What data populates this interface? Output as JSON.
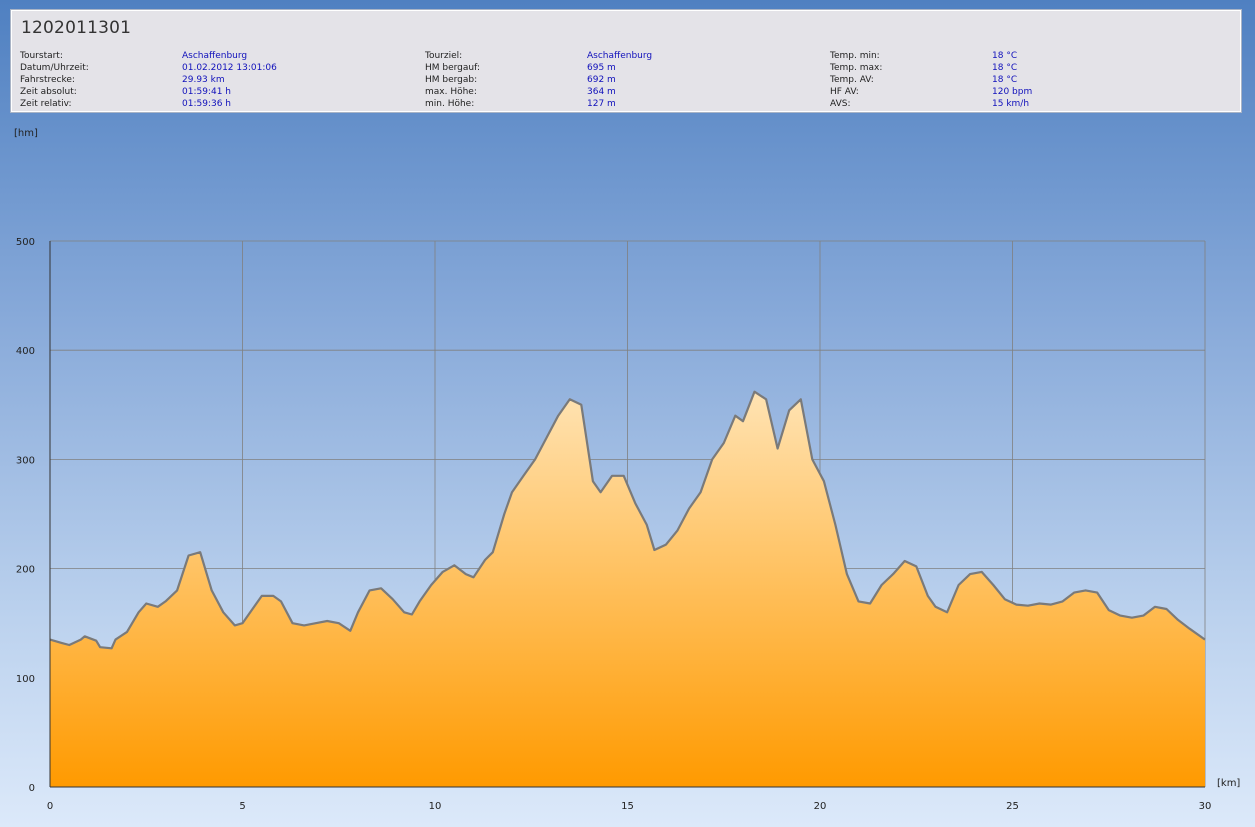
{
  "header": {
    "title": "1202011301",
    "col1": [
      {
        "label": "Tourstart:",
        "value": "Aschaffenburg"
      },
      {
        "label": "Datum/Uhrzeit:",
        "value": "01.02.2012 13:01:06"
      },
      {
        "label": "Fahrstrecke:",
        "value": "29.93 km"
      },
      {
        "label": "Zeit absolut:",
        "value": "01:59:41 h"
      },
      {
        "label": "Zeit relativ:",
        "value": "01:59:36 h"
      }
    ],
    "col2": [
      {
        "label": "Tourziel:",
        "value": "Aschaffenburg"
      },
      {
        "label": "HM bergauf:",
        "value": "695 m"
      },
      {
        "label": "HM bergab:",
        "value": "692 m"
      },
      {
        "label": "max. Höhe:",
        "value": "364 m"
      },
      {
        "label": "min. Höhe:",
        "value": "127 m"
      }
    ],
    "col3": [
      {
        "label": "Temp. min:",
        "value": "18 °C"
      },
      {
        "label": "Temp. max:",
        "value": "18 °C"
      },
      {
        "label": "Temp. AV:",
        "value": "18 °C"
      },
      {
        "label": "HF AV:",
        "value": "120 bpm"
      },
      {
        "label": "AVS:",
        "value": "15 km/h"
      }
    ]
  },
  "colors": {
    "value_text": "#1111bb",
    "area_top": "#ffe3b3",
    "area_bottom": "#ff9a00",
    "line": "#7a7a7a",
    "grid": "#808080"
  },
  "chart_data": {
    "type": "area",
    "ylabel": "[hm]",
    "xlabel": "[km]",
    "xlim": [
      0,
      30
    ],
    "ylim": [
      0,
      500
    ],
    "x_ticks": [
      "0",
      "5",
      "10",
      "15",
      "20",
      "25",
      "30"
    ],
    "y_ticks": [
      "0",
      "100",
      "200",
      "300",
      "400",
      "500"
    ],
    "grid": true,
    "series": [
      {
        "x": [
          0,
          0.3,
          0.5,
          0.8,
          0.9,
          1.2,
          1.3,
          1.6,
          1.7,
          2.0,
          2.3,
          2.5,
          2.8,
          3.0,
          3.3,
          3.6,
          3.9,
          4.2,
          4.5,
          4.8,
          5.0,
          5.3,
          5.5,
          5.8,
          6.0,
          6.3,
          6.6,
          6.9,
          7.2,
          7.5,
          7.8,
          8.0,
          8.3,
          8.6,
          8.9,
          9.2,
          9.4,
          9.6,
          9.9,
          10.2,
          10.5,
          10.8,
          11.0,
          11.3,
          11.5,
          11.8,
          12.0,
          12.3,
          12.6,
          12.9,
          13.2,
          13.5,
          13.8,
          14.1,
          14.3,
          14.6,
          14.9,
          15.2,
          15.5,
          15.7,
          16.0,
          16.3,
          16.6,
          16.9,
          17.2,
          17.5,
          17.8,
          18.0,
          18.3,
          18.6,
          18.9,
          19.2,
          19.5,
          19.8,
          20.1,
          20.4,
          20.7,
          21.0,
          21.3,
          21.6,
          21.9,
          22.2,
          22.5,
          22.8,
          23.0,
          23.3,
          23.6,
          23.9,
          24.2,
          24.5,
          24.8,
          25.1,
          25.4,
          25.7,
          26.0,
          26.3,
          26.6,
          26.9,
          27.2,
          27.5,
          27.8,
          28.1,
          28.4,
          28.7,
          29.0,
          29.3,
          29.6,
          30.0
        ],
        "y": [
          135,
          132,
          130,
          135,
          138,
          134,
          128,
          127,
          135,
          142,
          160,
          168,
          165,
          170,
          180,
          212,
          215,
          180,
          160,
          148,
          150,
          165,
          175,
          175,
          170,
          150,
          148,
          150,
          152,
          150,
          143,
          160,
          180,
          182,
          172,
          160,
          158,
          170,
          185,
          197,
          203,
          195,
          192,
          208,
          215,
          250,
          270,
          285,
          300,
          320,
          340,
          355,
          350,
          280,
          270,
          285,
          285,
          260,
          240,
          217,
          222,
          235,
          255,
          270,
          300,
          315,
          340,
          335,
          362,
          355,
          310,
          345,
          355,
          300,
          280,
          240,
          195,
          170,
          168,
          185,
          195,
          207,
          202,
          175,
          165,
          160,
          185,
          195,
          197,
          185,
          172,
          167,
          166,
          168,
          167,
          170,
          178,
          180,
          178,
          162,
          157,
          155,
          157,
          165,
          163,
          153,
          145,
          135
        ]
      }
    ]
  }
}
